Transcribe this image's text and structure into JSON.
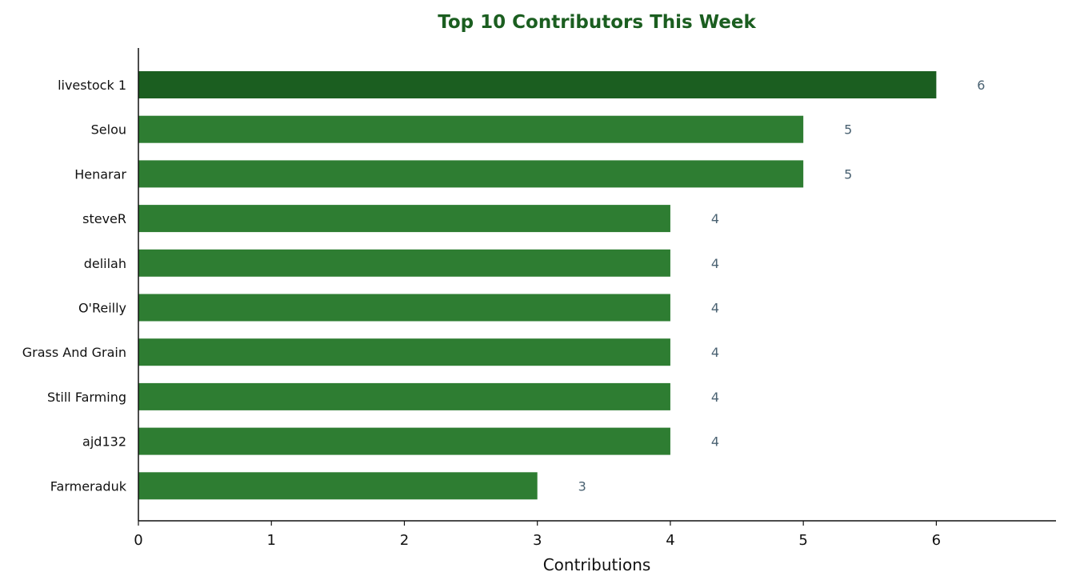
{
  "chart_data": {
    "type": "bar",
    "orientation": "horizontal",
    "title": "Top 10 Contributors This Week",
    "xlabel": "Contributions",
    "ylabel": "",
    "categories": [
      "livestock 1",
      "Selou",
      "Henarar",
      "steveR",
      "delilah",
      "O'Reilly",
      "Grass And Grain",
      "Still Farming",
      "ajd132",
      "Farmeraduk"
    ],
    "values": [
      6,
      5,
      5,
      4,
      4,
      4,
      4,
      4,
      4,
      3
    ],
    "xlim": [
      0,
      6.9
    ],
    "xticks": [
      0,
      1,
      2,
      3,
      4,
      5,
      6
    ],
    "data_labels": true,
    "grid": false,
    "colors": {
      "top_bar": "#1b5e20",
      "bar": "#2e7d32",
      "title": "#1b5e20",
      "value_label": "#4a6272",
      "axis": "#111111"
    }
  }
}
